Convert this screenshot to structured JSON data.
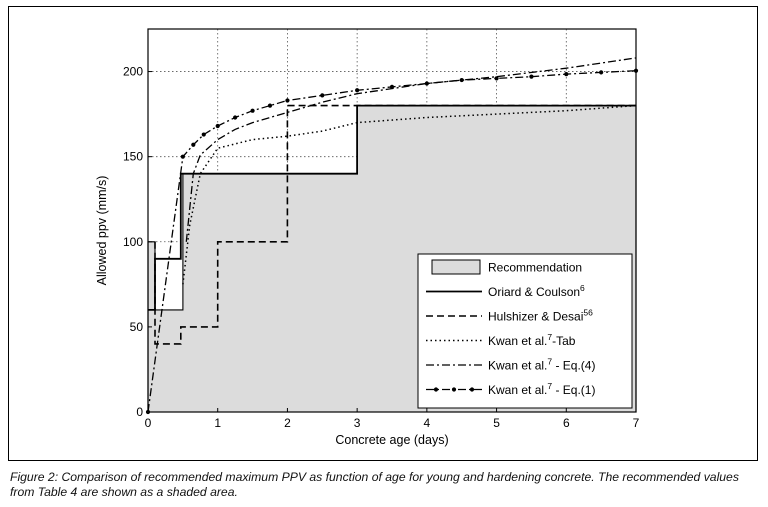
{
  "chart_data": {
    "type": "line",
    "xlabel": "Concrete age (days)",
    "ylabel": "Allowed ppv (mm/s)",
    "xlim": [
      0,
      7
    ],
    "ylim": [
      0,
      225
    ],
    "xticks": [
      0,
      1,
      2,
      3,
      4,
      5,
      6,
      7
    ],
    "yticks": [
      0,
      50,
      100,
      150,
      200
    ],
    "grid": "dotted vertical and horizontal at ticks",
    "legend_position": "lower-right",
    "series": [
      {
        "name": "Recommendation",
        "legend_text": "Recommendation",
        "legend_sup": "",
        "legend_suffix": "",
        "style": "shaded-area",
        "color": "#dcdcdc",
        "x": [
          0,
          0.1,
          0.1,
          0.5,
          0.5,
          3,
          3,
          7
        ],
        "y": [
          100,
          100,
          60,
          60,
          140,
          140,
          180,
          180
        ]
      },
      {
        "name": "Oriard & Coulson",
        "legend_text": "Oriard & Coulson",
        "legend_sup": "6",
        "legend_suffix": "",
        "style": "solid",
        "color": "#000000",
        "x": [
          0,
          0.1,
          0.1,
          0.17,
          0.17,
          0.47,
          0.47,
          3,
          3,
          7
        ],
        "y": [
          60,
          60,
          90,
          90,
          90,
          90,
          140,
          140,
          180,
          180
        ]
      },
      {
        "name": "Hulshizer & Desai",
        "legend_text": "Hulshizer & Desai",
        "legend_sup": "56",
        "legend_suffix": "",
        "style": "dashed",
        "color": "#000000",
        "x": [
          0.1,
          0.1,
          0.47,
          0.47,
          1,
          1,
          2,
          2,
          7
        ],
        "y": [
          100,
          40,
          40,
          50,
          50,
          100,
          100,
          180,
          180
        ]
      },
      {
        "name": "Kwan et al.-Tab",
        "legend_text": "Kwan et al.",
        "legend_sup": "7",
        "legend_suffix": "-Tab",
        "style": "dotted",
        "color": "#000000",
        "x": [
          0.5,
          0.6,
          0.75,
          1,
          1.5,
          2,
          2.5,
          3,
          4,
          5,
          6,
          7
        ],
        "y": [
          75,
          110,
          140,
          155,
          160,
          162,
          165,
          170,
          173,
          175,
          177,
          180
        ]
      },
      {
        "name": "Kwan et al. - Eq.(4)",
        "legend_text": "Kwan et al.",
        "legend_sup": "7",
        "legend_suffix": " - Eq.(4)",
        "style": "dashdot",
        "color": "#000000",
        "x": [
          0.55,
          0.65,
          0.75,
          1,
          1.25,
          1.5,
          2,
          2.5,
          3,
          4,
          5,
          6,
          7
        ],
        "y": [
          100,
          140,
          151,
          160,
          166,
          170,
          176,
          182,
          187,
          193,
          197,
          202,
          208
        ]
      },
      {
        "name": "Kwan et al. - Eq.(1)",
        "legend_text": "Kwan et al.",
        "legend_sup": "7",
        "legend_suffix": " - Eq.(1)",
        "style": "dashdot-dots",
        "color": "#000000",
        "x": [
          0,
          0.5,
          0.65,
          0.8,
          1,
          1.25,
          1.5,
          1.75,
          2,
          2.5,
          3,
          3.5,
          4,
          4.5,
          5,
          5.5,
          6,
          6.5,
          7
        ],
        "y": [
          0,
          150,
          157,
          163,
          168,
          173,
          177,
          180,
          183,
          186,
          189,
          191,
          193,
          195,
          196,
          197,
          198.5,
          199.5,
          200.5
        ]
      }
    ]
  },
  "caption": "Figure 2: Comparison of recommended maximum PPV as function of age for young and hardening concrete. The recommended values from Table 4 are shown as a shaded area."
}
